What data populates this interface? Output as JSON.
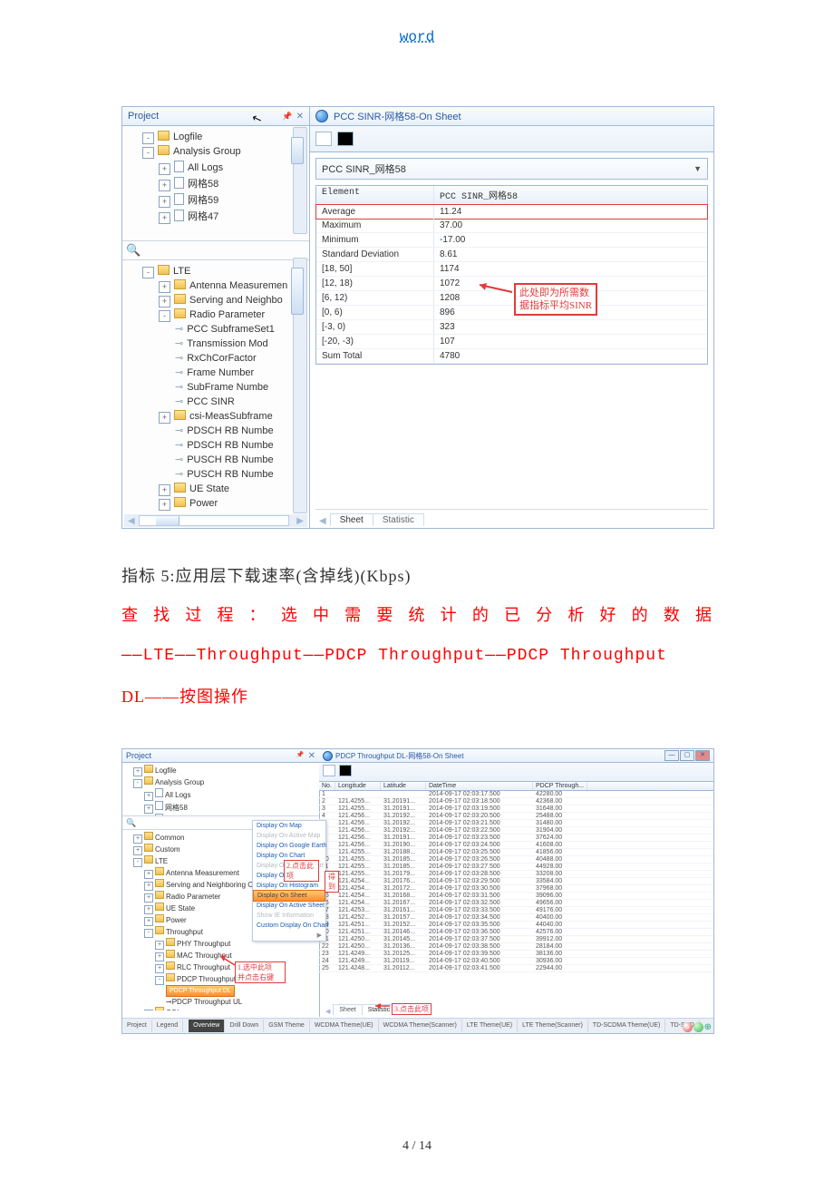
{
  "header": {
    "link": "word"
  },
  "shot1": {
    "projectTitle": "Project",
    "pinIcon": "📌",
    "closeIcon": "✕",
    "treeTop": [
      {
        "indent": 18,
        "exp": "-",
        "icon": "fldr",
        "label": "Logfile"
      },
      {
        "indent": 18,
        "exp": "-",
        "icon": "fldr",
        "label": "Analysis Group"
      },
      {
        "indent": 36,
        "exp": "+",
        "icon": "file",
        "label": "All Logs"
      },
      {
        "indent": 36,
        "exp": "+",
        "icon": "file",
        "label": "网格58"
      },
      {
        "indent": 36,
        "exp": "+",
        "icon": "file",
        "label": "网格59"
      },
      {
        "indent": 36,
        "exp": "+",
        "icon": "file",
        "label": "网格47"
      }
    ],
    "treeBottom": [
      {
        "indent": 18,
        "exp": "-",
        "icon": "fldr",
        "label": "LTE"
      },
      {
        "indent": 36,
        "exp": "+",
        "icon": "fldr",
        "label": "Antenna Measuremen"
      },
      {
        "indent": 36,
        "exp": "+",
        "icon": "fldr",
        "label": "Serving and Neighbo"
      },
      {
        "indent": 36,
        "exp": "-",
        "icon": "fldr",
        "label": "Radio Parameter"
      },
      {
        "indent": 54,
        "bullet": "⊸",
        "label": "PCC SubframeSet1"
      },
      {
        "indent": 54,
        "bullet": "⊸",
        "label": "Transmission Mod"
      },
      {
        "indent": 54,
        "bullet": "⊸",
        "label": "RxChCorFactor"
      },
      {
        "indent": 54,
        "bullet": "⊸",
        "label": "Frame Number"
      },
      {
        "indent": 54,
        "bullet": "⊸",
        "label": "SubFrame Numbe"
      },
      {
        "indent": 54,
        "bullet": "⊸",
        "label": "PCC SINR"
      },
      {
        "indent": 36,
        "exp": "+",
        "icon": "fldr",
        "label": "csi-MeasSubframe"
      },
      {
        "indent": 54,
        "bullet": "⊸",
        "label": "PDSCH RB Numbe"
      },
      {
        "indent": 54,
        "bullet": "⊸",
        "label": "PDSCH RB Numbe"
      },
      {
        "indent": 54,
        "bullet": "⊸",
        "label": "PUSCH RB Numbe"
      },
      {
        "indent": 54,
        "bullet": "⊸",
        "label": "PUSCH RB Numbe"
      },
      {
        "indent": 36,
        "exp": "+",
        "icon": "fldr",
        "label": "UE State"
      },
      {
        "indent": 36,
        "exp": "+",
        "icon": "fldr",
        "label": "Power"
      }
    ],
    "rightTitle": "PCC SINR-网格58-On Sheet",
    "combo": "PCC SINR_网格58",
    "gridHeader": {
      "l": "Element",
      "r": "PCC SINR_网格58"
    },
    "gridRows": [
      {
        "l": "Average",
        "r": "11.24",
        "avg": true
      },
      {
        "l": "Maximum",
        "r": "37.00"
      },
      {
        "l": "Minimum",
        "r": "-17.00"
      },
      {
        "l": "Standard Deviation",
        "r": "8.61"
      },
      {
        "l": "[18, 50]",
        "r": "1174"
      },
      {
        "l": "[12, 18)",
        "r": "1072"
      },
      {
        "l": "[6, 12)",
        "r": "1208"
      },
      {
        "l": "[0, 6)",
        "r": "896"
      },
      {
        "l": "[-3, 0)",
        "r": "323"
      },
      {
        "l": "[-20, -3)",
        "r": "107"
      },
      {
        "l": "Sum Total",
        "r": "4780"
      }
    ],
    "callout": {
      "l1": "此处即为所需数",
      "l2": "据指标平均SINR"
    },
    "tabs": {
      "sheet": "Sheet",
      "statistic": "Statistic"
    }
  },
  "body": {
    "line1": "指标 5:应用层下载速率(含掉线)(Kbps)",
    "line2": "查找过程：选中需要统计的已分析好的数据",
    "line3": "——LTE——Throughput——PDCP Throughput——PDCP Throughput",
    "line4": "DL——按图操作"
  },
  "shot2": {
    "projectTitle": "Project",
    "treeTop": [
      {
        "indent": 10,
        "exp": "+",
        "icon": "fldr",
        "label": "Logfile"
      },
      {
        "indent": 10,
        "exp": "-",
        "icon": "fldr",
        "label": "Analysis Group"
      },
      {
        "indent": 22,
        "exp": "+",
        "icon": "file",
        "label": "All Logs"
      },
      {
        "indent": 22,
        "exp": "+",
        "icon": "file",
        "label": "网格58"
      },
      {
        "indent": 22,
        "exp": "+",
        "icon": "file",
        "label": "网格59"
      },
      {
        "indent": 22,
        "exp": "+",
        "icon": "file",
        "label": "网格47"
      }
    ],
    "tree3": [
      {
        "indent": 10,
        "exp": "+",
        "icon": "fldr",
        "label": "Common"
      },
      {
        "indent": 10,
        "exp": "+",
        "icon": "fldr",
        "label": "Custom"
      },
      {
        "indent": 10,
        "exp": "-",
        "icon": "fldr",
        "label": "LTE"
      },
      {
        "indent": 22,
        "exp": "+",
        "icon": "fldr",
        "label": "Antenna Measurement"
      },
      {
        "indent": 22,
        "exp": "+",
        "icon": "fldr",
        "label": "Serving and Neighboring Cel"
      },
      {
        "indent": 22,
        "exp": "+",
        "icon": "fldr",
        "label": "Radio Parameter"
      },
      {
        "indent": 22,
        "exp": "+",
        "icon": "fldr",
        "label": "UE State"
      },
      {
        "indent": 22,
        "exp": "+",
        "icon": "fldr",
        "label": "Power"
      },
      {
        "indent": 22,
        "exp": "-",
        "icon": "fldr",
        "label": "Throughput"
      },
      {
        "indent": 34,
        "exp": "+",
        "icon": "fldr",
        "label": "PHY Throughput"
      },
      {
        "indent": 34,
        "exp": "+",
        "icon": "fldr",
        "label": "MAC Throughput"
      },
      {
        "indent": 34,
        "exp": "+",
        "icon": "fldr",
        "label": "RLC Throughput"
      },
      {
        "indent": 34,
        "exp": "-",
        "icon": "fldr",
        "label": "PDCP Throughput"
      },
      {
        "indent": 46,
        "sel": true,
        "label": "PDCP Throughput DL"
      },
      {
        "indent": 46,
        "bullet": "⊸",
        "label": "PDCP Throughput UL"
      },
      {
        "indent": 22,
        "exp": "+",
        "icon": "fldr",
        "label": "CQI"
      },
      {
        "indent": 22,
        "exp": "+",
        "icon": "fldr",
        "label": "BLER"
      }
    ],
    "ctx": [
      {
        "t": "Display On Map"
      },
      {
        "t": "Display On Active Map",
        "dis": true
      },
      {
        "t": "Display On Google Earth"
      },
      {
        "t": "Display On Chart"
      },
      {
        "t": "Display On Active Chart",
        "dis": true
      },
      {
        "t": "Display On Calc"
      },
      {
        "t": "Display On Histogram"
      },
      {
        "t": "Display On Sheet",
        "hi": true
      },
      {
        "t": "Display On Active Sheet"
      },
      {
        "t": "Show IE Information",
        "dis": true
      },
      {
        "t": "Custom Display On Chart",
        "arw": true
      }
    ],
    "callouts": {
      "sel": "1.选中此项\n并点击右键",
      "click": "2.点击此项",
      "goto": "得到",
      "stat": "3.点击此项"
    },
    "rightTitle": "PDCP Throughput DL-网格58-On Sheet",
    "dhead": {
      "n": "No.",
      "lo": "Longitude",
      "la": "Latitude",
      "dt": "DateTime",
      "th": "PDCP Through..."
    },
    "drows": [
      {
        "n": "1",
        "lo": "",
        "la": "",
        "dt": "2014-09-17 02:03:17.500",
        "th": "42280.00"
      },
      {
        "n": "2",
        "lo": "121.4255...",
        "la": "31.20191...",
        "dt": "2014-09-17 02:03:18.500",
        "th": "42368.00"
      },
      {
        "n": "3",
        "lo": "121.4255...",
        "la": "31.20191...",
        "dt": "2014-09-17 02:03:19.500",
        "th": "31648.00"
      },
      {
        "n": "4",
        "lo": "121.4256...",
        "la": "31.20192...",
        "dt": "2014-09-17 02:03:20.500",
        "th": "25488.00"
      },
      {
        "n": "5",
        "lo": "121.4256...",
        "la": "31.20192...",
        "dt": "2014-09-17 02:03:21.500",
        "th": "31480.00"
      },
      {
        "n": "6",
        "lo": "121.4256...",
        "la": "31.20192...",
        "dt": "2014-09-17 02:03:22.500",
        "th": "31904.00"
      },
      {
        "n": "7",
        "lo": "121.4256...",
        "la": "31.20191...",
        "dt": "2014-09-17 02:03:23.500",
        "th": "37624.00"
      },
      {
        "n": "8",
        "lo": "121.4256...",
        "la": "31.20190...",
        "dt": "2014-09-17 02:03:24.500",
        "th": "41608.00"
      },
      {
        "n": "9",
        "lo": "121.4255...",
        "la": "31.20188...",
        "dt": "2014-09-17 02:03:25.500",
        "th": "41856.00"
      },
      {
        "n": "10",
        "lo": "121.4255...",
        "la": "31.20185...",
        "dt": "2014-09-17 02:03:26.500",
        "th": "40488.00"
      },
      {
        "n": "11",
        "lo": "121.4255...",
        "la": "31.20185...",
        "dt": "2014-09-17 02:03:27.500",
        "th": "44928.00"
      },
      {
        "n": "12",
        "lo": "121.4255...",
        "la": "31.20179...",
        "dt": "2014-09-17 02:03:28.500",
        "th": "33208.00"
      },
      {
        "n": "13",
        "lo": "121.4254...",
        "la": "31.20176...",
        "dt": "2014-09-17 02:03:29.500",
        "th": "33584.00"
      },
      {
        "n": "14",
        "lo": "121.4254...",
        "la": "31.20172...",
        "dt": "2014-09-17 02:03:30.500",
        "th": "37968.00"
      },
      {
        "n": "15",
        "lo": "121.4254...",
        "la": "31.20168...",
        "dt": "2014-09-17 02:03:31.500",
        "th": "39096.00"
      },
      {
        "n": "16",
        "lo": "121.4254...",
        "la": "31.20167...",
        "dt": "2014-09-17 02:03:32.500",
        "th": "49656.00"
      },
      {
        "n": "17",
        "lo": "121.4253...",
        "la": "31.20161...",
        "dt": "2014-09-17 02:03:33.500",
        "th": "49176.00"
      },
      {
        "n": "18",
        "lo": "121.4252...",
        "la": "31.20157...",
        "dt": "2014-09-17 02:03:34.500",
        "th": "40400.00"
      },
      {
        "n": "19",
        "lo": "121.4251...",
        "la": "31.20152...",
        "dt": "2014-09-17 02:03:35.500",
        "th": "44040.00"
      },
      {
        "n": "20",
        "lo": "121.4251...",
        "la": "31.20146...",
        "dt": "2014-09-17 02:03:36.500",
        "th": "42576.00"
      },
      {
        "n": "21",
        "lo": "121.4250...",
        "la": "31.20145...",
        "dt": "2014-09-17 02:03:37.500",
        "th": "39912.00"
      },
      {
        "n": "22",
        "lo": "121.4250...",
        "la": "31.20136...",
        "dt": "2014-09-17 02:03:38.500",
        "th": "28184.00"
      },
      {
        "n": "23",
        "lo": "121.4249...",
        "la": "31.20125...",
        "dt": "2014-09-17 02:03:39.500",
        "th": "38136.00"
      },
      {
        "n": "24",
        "lo": "121.4249...",
        "la": "31.20119...",
        "dt": "2014-09-17 02:03:40.500",
        "th": "30936.00"
      },
      {
        "n": "25",
        "lo": "121.4248...",
        "la": "31.20112...",
        "dt": "2014-09-17 02:03:41.500",
        "th": "22944.00"
      }
    ],
    "tabs": {
      "sheet": "Sheet",
      "statistic": "Statistic"
    },
    "status": {
      "segs": [
        "Project",
        "Legend"
      ],
      "rsegs": [
        "Overview",
        "Drill Down",
        "GSM Theme",
        "WCDMA Theme(UE)",
        "WCDMA Theme(Scanner)",
        "LTE Theme(UE)",
        "LTE Theme(Scanner)",
        "TD-SCDMA Theme(UE)",
        "TD-SCD"
      ]
    }
  },
  "footer": {
    "page": "4 / 14"
  }
}
